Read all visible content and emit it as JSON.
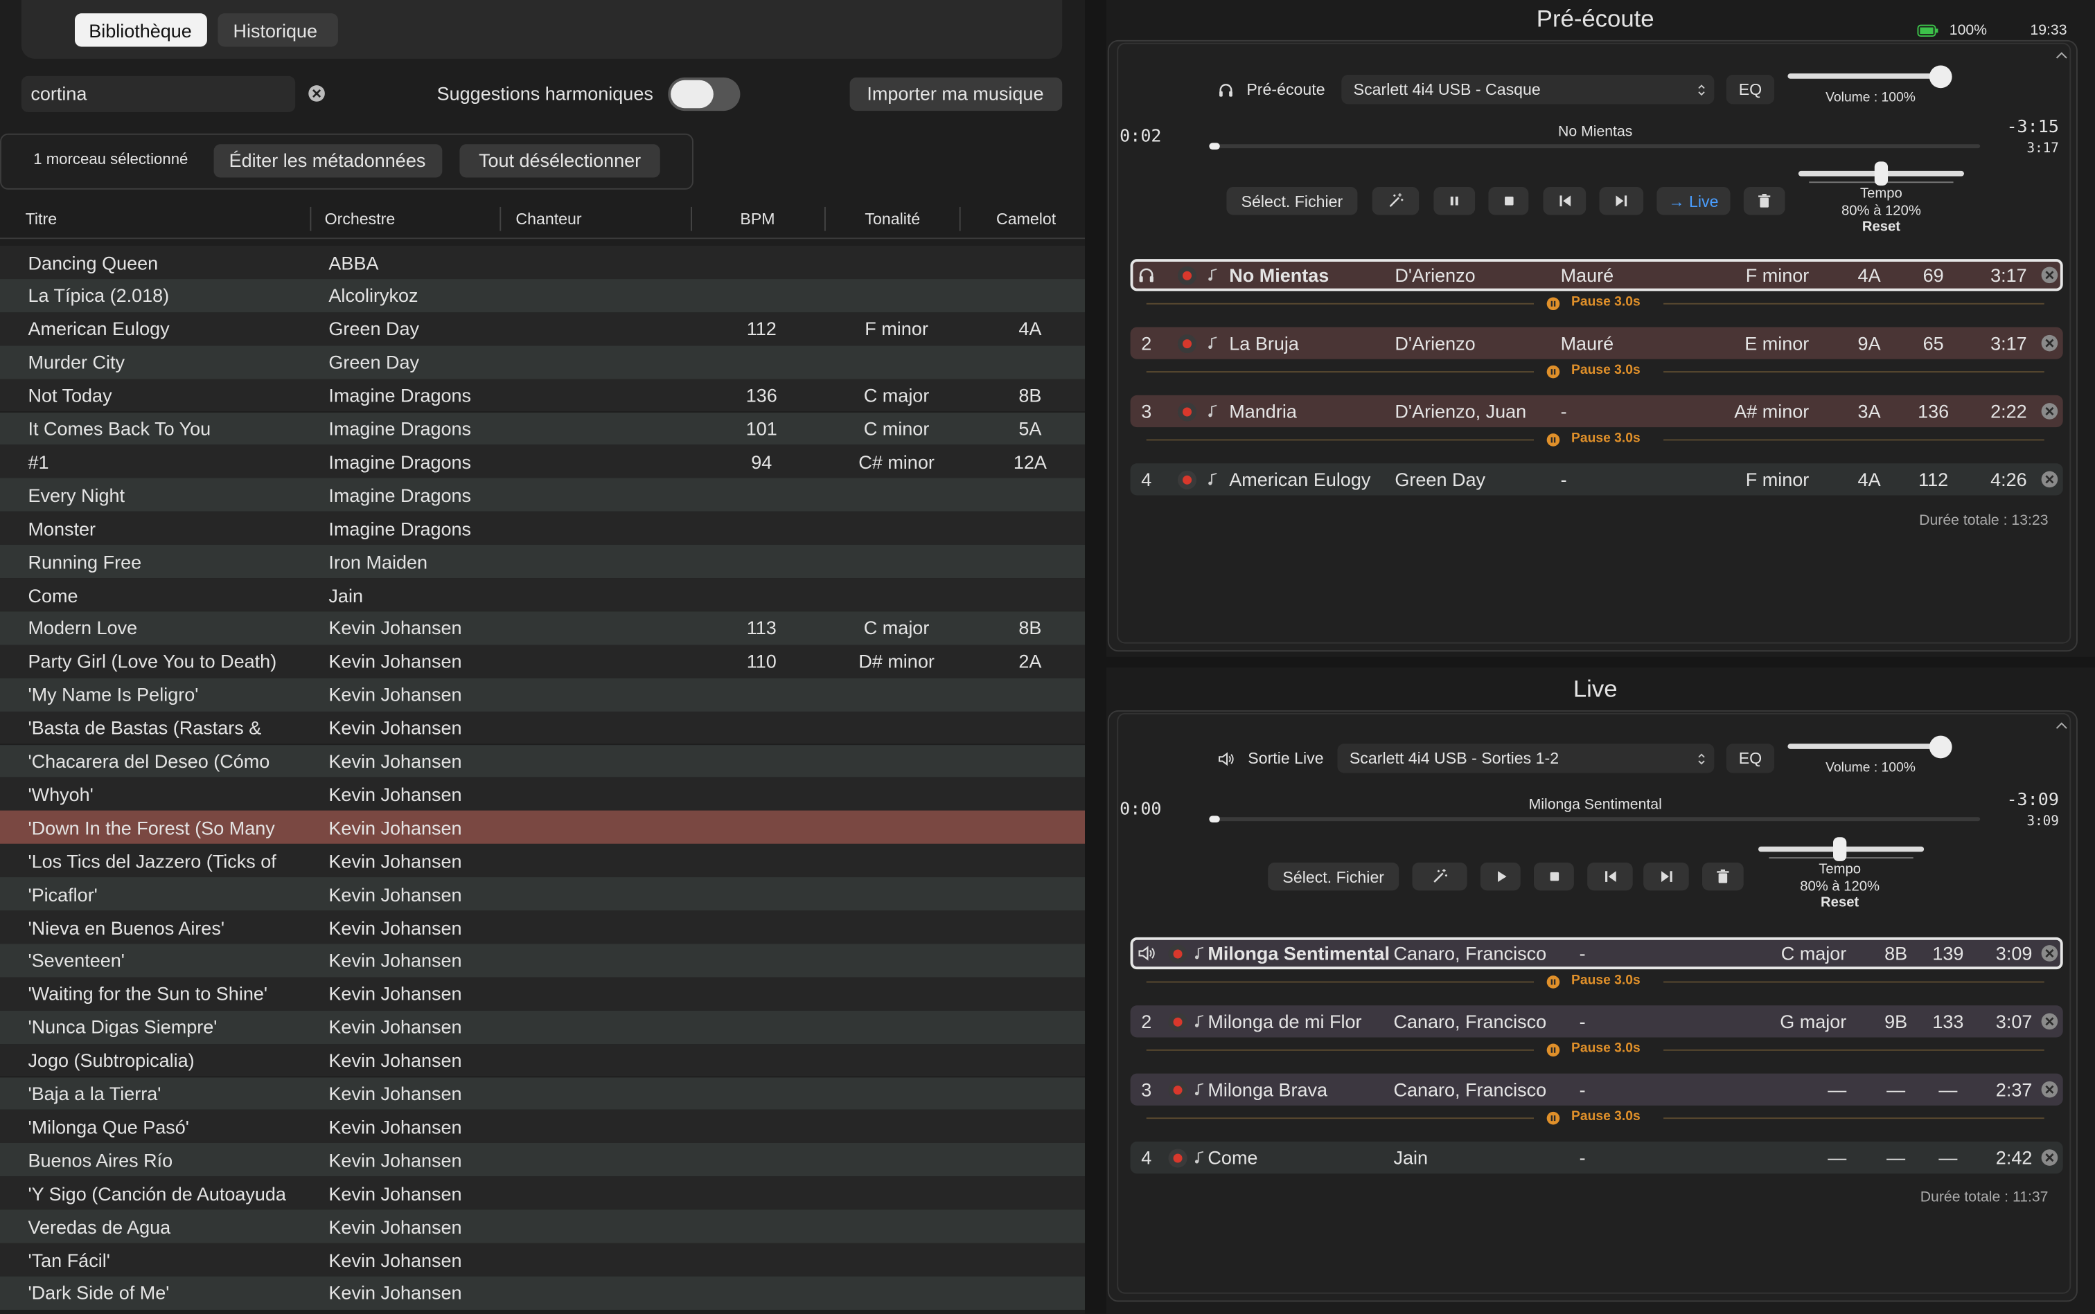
{
  "library": {
    "tabs": [
      "Bibliothèque",
      "Historique"
    ],
    "search": "cortina",
    "harmonic_toggle": "Suggestions harmoniques",
    "import_button": "Importer ma musique",
    "selection": {
      "count": "1 morceau sélectionné",
      "edit": "Éditer les métadonnées",
      "deselect": "Tout désélectionner"
    },
    "columns": [
      "Titre",
      "Orchestre",
      "Chanteur",
      "BPM",
      "Tonalité",
      "Camelot"
    ],
    "rows": [
      {
        "title": "Dancing Queen",
        "orchestra": "ABBA"
      },
      {
        "title": "La Típica (2.018)",
        "orchestra": "Alcolirykoz"
      },
      {
        "title": "American Eulogy",
        "orchestra": "Green Day",
        "bpm": 112,
        "key": "F minor",
        "camelot": "4A"
      },
      {
        "title": "Murder City",
        "orchestra": "Green Day"
      },
      {
        "title": "Not Today",
        "orchestra": "Imagine Dragons",
        "bpm": 136,
        "key": "C major",
        "camelot": "8B"
      },
      {
        "title": "It Comes Back To You",
        "orchestra": "Imagine Dragons",
        "bpm": 101,
        "key": "C minor",
        "camelot": "5A"
      },
      {
        "title": "#1",
        "orchestra": "Imagine Dragons",
        "bpm": 94,
        "key": "C# minor",
        "camelot": "12A"
      },
      {
        "title": "Every Night",
        "orchestra": "Imagine Dragons"
      },
      {
        "title": "Monster",
        "orchestra": "Imagine Dragons"
      },
      {
        "title": "Running Free",
        "orchestra": "Iron Maiden"
      },
      {
        "title": "Come",
        "orchestra": "Jain"
      },
      {
        "title": "Modern Love",
        "orchestra": "Kevin Johansen",
        "bpm": 113,
        "key": "C major",
        "camelot": "8B"
      },
      {
        "title": "Party Girl (Love You to Death)",
        "orchestra": "Kevin Johansen",
        "bpm": 110,
        "key": "D# minor",
        "camelot": "2A"
      },
      {
        "title": "'My Name Is Peligro'",
        "orchestra": "Kevin Johansen"
      },
      {
        "title": "'Basta de Bastas (Rastars &",
        "orchestra": "Kevin Johansen"
      },
      {
        "title": "'Chacarera del Deseo (Cómo",
        "orchestra": "Kevin Johansen"
      },
      {
        "title": "'Whyoh'",
        "orchestra": "Kevin Johansen"
      },
      {
        "title": "'Down In the Forest (So Many",
        "orchestra": "Kevin Johansen",
        "selected": true
      },
      {
        "title": "'Los Tics del Jazzero (Ticks of",
        "orchestra": "Kevin Johansen"
      },
      {
        "title": "'Picaflor'",
        "orchestra": "Kevin Johansen"
      },
      {
        "title": "'Nieva en Buenos Aires'",
        "orchestra": "Kevin Johansen"
      },
      {
        "title": "'Seventeen'",
        "orchestra": "Kevin Johansen"
      },
      {
        "title": "'Waiting for the Sun to Shine'",
        "orchestra": "Kevin Johansen"
      },
      {
        "title": "'Nunca Digas Siempre'",
        "orchestra": "Kevin Johansen"
      },
      {
        "title": "Jogo (Subtropicalia)",
        "orchestra": "Kevin Johansen"
      },
      {
        "title": "'Baja a la Tierra'",
        "orchestra": "Kevin Johansen"
      },
      {
        "title": "'Milonga Que Pasó'",
        "orchestra": "Kevin Johansen"
      },
      {
        "title": "Buenos Aires Río",
        "orchestra": "Kevin Johansen"
      },
      {
        "title": "'Y Sigo (Canción de Autoayuda",
        "orchestra": "Kevin Johansen"
      },
      {
        "title": "Veredas de Agua",
        "orchestra": "Kevin Johansen"
      },
      {
        "title": "'Tan Fácil'",
        "orchestra": "Kevin Johansen"
      },
      {
        "title": "'Dark Side of Me'",
        "orchestra": "Kevin Johansen"
      }
    ]
  },
  "status": {
    "battery": "100%",
    "time": "19:33"
  },
  "decks": [
    {
      "title": "Pré-écoute",
      "output_label": "Pré-écoute",
      "device": "Scarlett 4i4 USB - Casque",
      "eq": "EQ",
      "volume": "Volume : 100%",
      "elapsed": "0:02",
      "track": "No Mientas",
      "remaining": "-3:15",
      "duration": "3:17",
      "select_file": "Sélect. Fichier",
      "playing": true,
      "live_button": "→ Live",
      "tempo": "Tempo",
      "tempo_range": "80% à 120%",
      "reset": "Reset",
      "queue": [
        {
          "title": "No Mientas",
          "orchestra": "D'Arienzo",
          "singer": "Mauré",
          "key": "F minor",
          "camelot": "4A",
          "bpm": 69,
          "duration": "3:17",
          "pause": "Pause 3.0s"
        },
        {
          "position": 2,
          "title": "La Bruja",
          "orchestra": "D'Arienzo",
          "singer": "Mauré",
          "key": "E minor",
          "camelot": "9A",
          "bpm": 65,
          "duration": "3:17",
          "pause": "Pause 3.0s"
        },
        {
          "position": 3,
          "title": "Mandria",
          "orchestra": "D'Arienzo, Juan",
          "singer": "-",
          "key": "A# minor",
          "camelot": "3A",
          "bpm": 136,
          "duration": "2:22",
          "pause": "Pause 3.0s"
        },
        {
          "position": 4,
          "title": "American Eulogy",
          "orchestra": "Green Day",
          "singer": "-",
          "key": "F minor",
          "camelot": "4A",
          "bpm": 112,
          "duration": "4:26"
        }
      ],
      "total": "Durée totale : 13:23"
    },
    {
      "title": "Live",
      "output_label": "Sortie Live",
      "device": "Scarlett 4i4 USB - Sorties 1-2",
      "eq": "EQ",
      "volume": "Volume : 100%",
      "elapsed": "0:00",
      "track": "Milonga Sentimental",
      "remaining": "-3:09",
      "duration": "3:09",
      "select_file": "Sélect. Fichier",
      "playing": false,
      "tempo": "Tempo",
      "tempo_range": "80% à 120%",
      "reset": "Reset",
      "queue": [
        {
          "title": "Milonga Sentimental",
          "orchestra": "Canaro, Francisco",
          "singer": "-",
          "key": "C major",
          "camelot": "8B",
          "bpm": 139,
          "duration": "3:09",
          "pause": "Pause 3.0s"
        },
        {
          "position": 2,
          "title": "Milonga de mi Flor",
          "orchestra": "Canaro, Francisco",
          "singer": "-",
          "key": "G major",
          "camelot": "9B",
          "bpm": 133,
          "duration": "3:07",
          "pause": "Pause 3.0s"
        },
        {
          "position": 3,
          "title": "Milonga Brava",
          "orchestra": "Canaro, Francisco",
          "singer": "-",
          "key": "—",
          "camelot": "—",
          "bpm": "—",
          "duration": "2:37",
          "pause": "Pause 3.0s"
        },
        {
          "position": 4,
          "title": "Come",
          "orchestra": "Jain",
          "singer": "-",
          "key": "—",
          "camelot": "—",
          "bpm": "—",
          "duration": "2:42"
        }
      ],
      "total": "Durée totale : 11:37"
    }
  ]
}
